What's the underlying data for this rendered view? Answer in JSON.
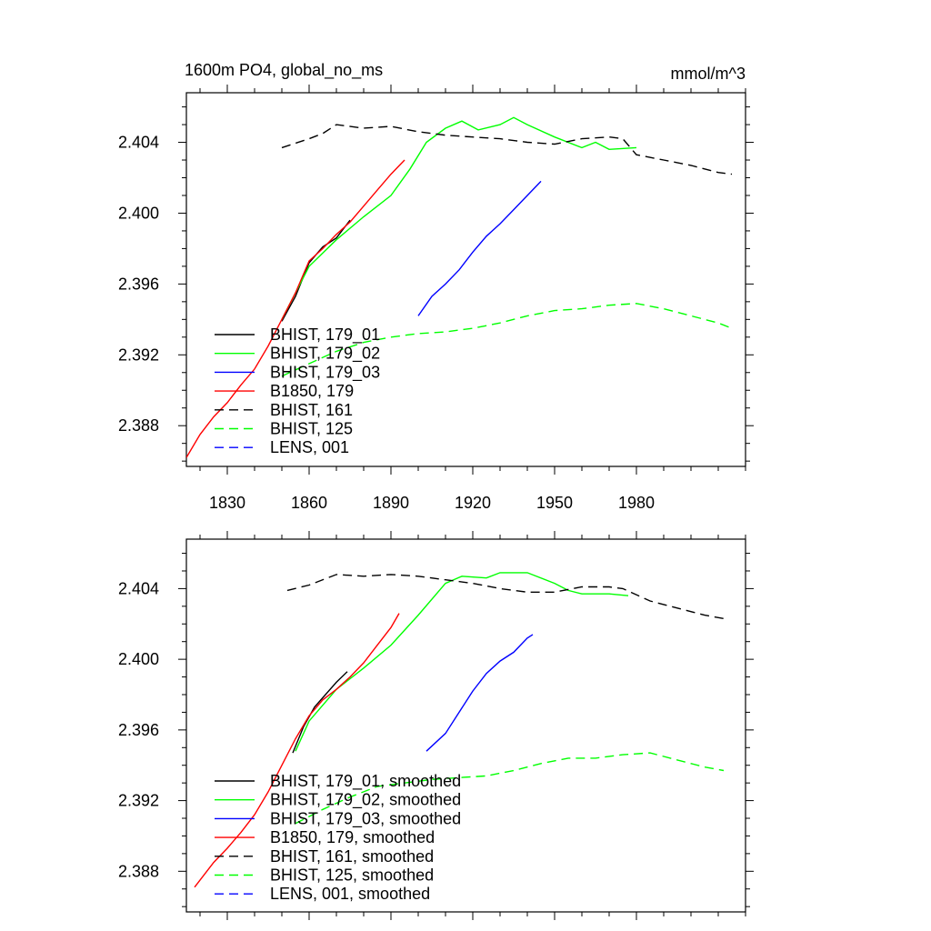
{
  "title_left": "1600m PO4, global_no_ms",
  "title_right": "mmol/m^3",
  "chart_data": [
    {
      "type": "line",
      "xlim": [
        1815,
        2020
      ],
      "ylim": [
        2.3857,
        2.4068
      ],
      "x_ticks": [
        1830,
        1860,
        1890,
        1920,
        1950,
        1980
      ],
      "x_tick_labels": [
        "1830",
        "1860",
        "1890",
        "1920",
        "1950",
        "1980"
      ],
      "y_ticks": [
        2.388,
        2.392,
        2.396,
        2.4,
        2.404
      ],
      "y_tick_labels": [
        "2.388",
        "2.392",
        "2.396",
        "2.400",
        "2.404"
      ],
      "legend_position": "lower-left",
      "legend": [
        "BHIST, 179_01",
        "BHIST, 179_02",
        "BHIST, 179_03",
        "B1850, 179",
        "BHIST, 161",
        "BHIST, 125",
        "LENS, 001"
      ],
      "series": [
        {
          "name": "BHIST, 179_01",
          "color": "#000000",
          "dash": "solid",
          "x": [
            1850,
            1855,
            1860,
            1865,
            1870,
            1875
          ],
          "y": [
            2.3939,
            2.3953,
            2.3972,
            2.3981,
            2.3986,
            2.3996
          ]
        },
        {
          "name": "BHIST, 179_02",
          "color": "#00ff00",
          "dash": "solid",
          "x": [
            1850,
            1860,
            1870,
            1880,
            1890,
            1897,
            1903,
            1910,
            1916,
            1922,
            1930,
            1935,
            1940,
            1950,
            1960,
            1965,
            1970,
            1980
          ],
          "y": [
            2.394,
            2.397,
            2.3985,
            2.3998,
            2.401,
            2.4025,
            2.404,
            2.4048,
            2.4052,
            2.4047,
            2.405,
            2.4054,
            2.405,
            2.4043,
            2.4037,
            2.404,
            2.4036,
            2.4037
          ]
        },
        {
          "name": "BHIST, 179_03",
          "color": "#0000ff",
          "dash": "solid",
          "x": [
            1900,
            1905,
            1910,
            1915,
            1920,
            1925,
            1930,
            1935,
            1940,
            1945
          ],
          "y": [
            2.3942,
            2.3953,
            2.396,
            2.3968,
            2.3978,
            2.3987,
            2.3994,
            2.4002,
            2.401,
            2.4018
          ]
        },
        {
          "name": "B1850, 179",
          "color": "#ff0000",
          "dash": "solid",
          "x": [
            1815,
            1820,
            1825,
            1830,
            1835,
            1840,
            1845,
            1850,
            1855,
            1860,
            1865,
            1870,
            1875,
            1880,
            1885,
            1890,
            1895
          ],
          "y": [
            2.3862,
            2.3875,
            2.3885,
            2.3893,
            2.3903,
            2.3912,
            2.3925,
            2.394,
            2.3955,
            2.3973,
            2.398,
            2.3988,
            2.3995,
            2.4004,
            2.4013,
            2.4022,
            2.403
          ]
        },
        {
          "name": "BHIST, 161",
          "color": "#000000",
          "dash": "dashed",
          "x": [
            1850,
            1860,
            1865,
            1870,
            1880,
            1890,
            1900,
            1910,
            1920,
            1930,
            1940,
            1950,
            1960,
            1970,
            1975,
            1980,
            1990,
            2000,
            2010,
            2015
          ],
          "y": [
            2.4037,
            2.4042,
            2.4045,
            2.405,
            2.4048,
            2.4049,
            2.4046,
            2.4044,
            2.4043,
            2.4042,
            2.404,
            2.4039,
            2.4042,
            2.4043,
            2.4042,
            2.4033,
            2.403,
            2.4027,
            2.4023,
            2.4022
          ]
        },
        {
          "name": "BHIST, 125",
          "color": "#00ff00",
          "dash": "dashed",
          "x": [
            1850,
            1860,
            1870,
            1880,
            1890,
            1900,
            1910,
            1920,
            1930,
            1940,
            1950,
            1960,
            1970,
            1980,
            1990,
            2000,
            2010,
            2015
          ],
          "y": [
            2.3908,
            2.3915,
            2.3922,
            2.3927,
            2.393,
            2.3932,
            2.3933,
            2.3935,
            2.3938,
            2.3942,
            2.3945,
            2.3946,
            2.3948,
            2.3949,
            2.3946,
            2.3942,
            2.3938,
            2.3935
          ]
        },
        {
          "name": "LENS, 001",
          "color": "#0000ff",
          "dash": "dashed",
          "x": [],
          "y": []
        }
      ]
    },
    {
      "type": "line",
      "xlim": [
        1815,
        2020
      ],
      "ylim": [
        2.3857,
        2.4068
      ],
      "x_ticks": [
        1830,
        1860,
        1890,
        1920,
        1950,
        1980
      ],
      "y_ticks": [
        2.388,
        2.392,
        2.396,
        2.4,
        2.404
      ],
      "y_tick_labels": [
        "2.388",
        "2.392",
        "2.396",
        "2.400",
        "2.404"
      ],
      "legend_position": "lower-left",
      "legend": [
        "BHIST, 179_01, smoothed",
        "BHIST, 179_02, smoothed",
        "BHIST, 179_03, smoothed",
        "B1850, 179, smoothed",
        "BHIST, 161, smoothed",
        "BHIST, 125, smoothed",
        "LENS, 001, smoothed"
      ],
      "series": [
        {
          "name": "BHIST, 179_01, smoothed",
          "color": "#000000",
          "dash": "solid",
          "x": [
            1854,
            1858,
            1862,
            1866,
            1870,
            1874
          ],
          "y": [
            2.3947,
            2.3962,
            2.3973,
            2.398,
            2.3987,
            2.3993
          ]
        },
        {
          "name": "BHIST, 179_02, smoothed",
          "color": "#00ff00",
          "dash": "solid",
          "x": [
            1855,
            1860,
            1870,
            1880,
            1890,
            1900,
            1910,
            1916,
            1925,
            1930,
            1940,
            1950,
            1955,
            1960,
            1970,
            1977
          ],
          "y": [
            2.3948,
            2.3965,
            2.3983,
            2.3995,
            2.4008,
            2.4025,
            2.4043,
            2.4047,
            2.4046,
            2.4049,
            2.4049,
            2.4043,
            2.4039,
            2.4037,
            2.4037,
            2.4036
          ]
        },
        {
          "name": "BHIST, 179_03, smoothed",
          "color": "#0000ff",
          "dash": "solid",
          "x": [
            1903,
            1910,
            1915,
            1920,
            1925,
            1930,
            1935,
            1940,
            1942
          ],
          "y": [
            2.3948,
            2.3958,
            2.397,
            2.3982,
            2.3992,
            2.3999,
            2.4004,
            2.4012,
            2.4014
          ]
        },
        {
          "name": "B1850, 179, smoothed",
          "color": "#ff0000",
          "dash": "solid",
          "x": [
            1818,
            1825,
            1830,
            1835,
            1840,
            1845,
            1850,
            1855,
            1860,
            1865,
            1870,
            1875,
            1880,
            1885,
            1890,
            1893
          ],
          "y": [
            2.3871,
            2.3885,
            2.3893,
            2.3902,
            2.3912,
            2.3925,
            2.394,
            2.3955,
            2.3968,
            2.3977,
            2.3983,
            2.399,
            2.3998,
            2.4008,
            2.4018,
            2.4026
          ]
        },
        {
          "name": "BHIST, 161, smoothed",
          "color": "#000000",
          "dash": "dashed",
          "x": [
            1852,
            1860,
            1870,
            1880,
            1890,
            1900,
            1910,
            1920,
            1930,
            1940,
            1950,
            1960,
            1970,
            1975,
            1985,
            1995,
            2005,
            2012
          ],
          "y": [
            2.4039,
            2.4042,
            2.4048,
            2.4047,
            2.4048,
            2.4047,
            2.4045,
            2.4043,
            2.404,
            2.4038,
            2.4038,
            2.4041,
            2.4041,
            2.404,
            2.4033,
            2.4029,
            2.4025,
            2.4023
          ]
        },
        {
          "name": "BHIST, 125, smoothed",
          "color": "#00ff00",
          "dash": "dashed",
          "x": [
            1855,
            1865,
            1875,
            1885,
            1895,
            1905,
            1915,
            1925,
            1935,
            1945,
            1955,
            1965,
            1975,
            1985,
            1995,
            2005,
            2012
          ],
          "y": [
            2.3907,
            2.3915,
            2.3922,
            2.3928,
            2.393,
            2.3932,
            2.3933,
            2.3934,
            2.3937,
            2.3941,
            2.3944,
            2.3944,
            2.3946,
            2.3947,
            2.3943,
            2.3939,
            2.3937
          ]
        },
        {
          "name": "LENS, 001, smoothed",
          "color": "#0000ff",
          "dash": "dashed",
          "x": [],
          "y": []
        }
      ]
    }
  ]
}
